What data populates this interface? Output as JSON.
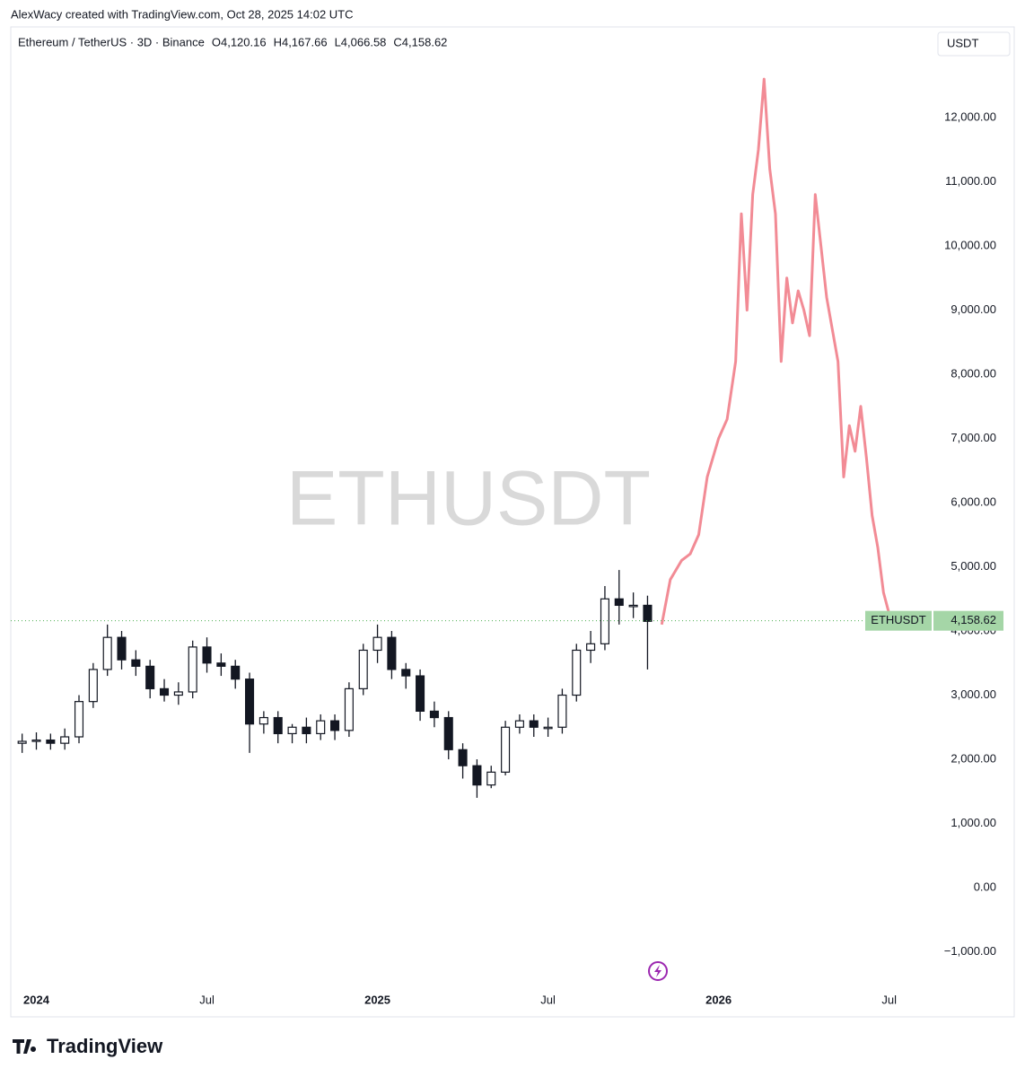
{
  "header": "AlexWacy created with TradingView.com, Oct 28, 2025 14:02 UTC",
  "brand": "TradingView",
  "chart_data": {
    "type": "candlestick",
    "title": "Ethereum / TetherUS · 3D · Binance",
    "ohlc_labels": [
      "O4,120.16",
      "H4,167.66",
      "L4,066.58",
      "C4,158.62"
    ],
    "watermark": "ETHUSDT",
    "currency": "USDT",
    "color": "#131722",
    "x": [
      -0.5,
      0,
      0.5,
      1,
      1.5,
      2,
      2.5,
      3,
      3.5,
      4,
      4.5,
      5,
      5.5,
      6,
      6.5,
      7,
      7.5,
      8,
      8.5,
      9,
      9.5,
      10,
      10.5,
      11,
      11.5,
      12,
      12.5,
      13,
      13.5,
      14,
      14.5,
      15,
      15.5,
      16,
      16.5,
      17,
      17.5,
      18,
      18.5,
      19,
      19.5,
      20,
      20.5,
      21,
      21.5
    ],
    "open": [
      2250,
      2280,
      2300,
      2250,
      2350,
      2900,
      3400,
      3900,
      3550,
      3450,
      3100,
      3000,
      3050,
      3750,
      3500,
      3450,
      3250,
      2550,
      2650,
      2400,
      2500,
      2400,
      2600,
      2450,
      3100,
      3700,
      3900,
      3400,
      3300,
      2750,
      2650,
      2150,
      1900,
      1600,
      1800,
      2500,
      2600,
      2500,
      2500,
      3000,
      3700,
      3800,
      4500,
      4400,
      4400
    ],
    "high": [
      2400,
      2420,
      2400,
      2480,
      3000,
      3500,
      4100,
      4000,
      3700,
      3550,
      3250,
      3200,
      3850,
      3900,
      3650,
      3550,
      3350,
      2750,
      2750,
      2550,
      2650,
      2700,
      2700,
      3200,
      3800,
      4100,
      4000,
      3500,
      3400,
      2900,
      2750,
      2250,
      2000,
      1900,
      2600,
      2700,
      2700,
      2650,
      3100,
      3800,
      4000,
      4700,
      4950,
      4600,
      4550
    ],
    "low": [
      2100,
      2150,
      2150,
      2150,
      2250,
      2800,
      3300,
      3400,
      3300,
      2950,
      2900,
      2850,
      2950,
      3350,
      3300,
      3100,
      2100,
      2400,
      2250,
      2250,
      2250,
      2300,
      2300,
      2350,
      3000,
      3500,
      3250,
      3100,
      2600,
      2500,
      2000,
      1700,
      1400,
      1550,
      1750,
      2400,
      2350,
      2350,
      2400,
      2900,
      3500,
      3700,
      4100,
      4200,
      3400
    ],
    "close": [
      2280,
      2300,
      2250,
      2350,
      2900,
      3400,
      3900,
      3550,
      3450,
      3100,
      3000,
      3050,
      3750,
      3500,
      3450,
      3250,
      2550,
      2650,
      2400,
      2500,
      2400,
      2600,
      2450,
      3100,
      3700,
      3900,
      3400,
      3300,
      2750,
      2650,
      2150,
      1900,
      1600,
      1800,
      2500,
      2600,
      2500,
      2500,
      3000,
      3700,
      3800,
      4500,
      4400,
      4400,
      4150
    ],
    "projection": {
      "color": "#f28b95",
      "x": [
        22,
        22.3,
        22.7,
        23,
        23.3,
        23.6,
        24,
        24.3,
        24.6,
        24.8,
        25,
        25.2,
        25.4,
        25.6,
        25.8,
        26,
        26.2,
        26.4,
        26.6,
        26.8,
        27,
        27.2,
        27.4,
        27.6,
        27.8,
        28,
        28.2,
        28.4,
        28.6,
        28.8,
        29,
        29.2,
        29.4,
        29.6,
        29.8,
        30.1
      ],
      "values": [
        4100,
        4800,
        5100,
        5200,
        5500,
        6400,
        7000,
        7300,
        8200,
        10500,
        9000,
        10800,
        11500,
        12600,
        11200,
        10500,
        8200,
        9500,
        8800,
        9300,
        9000,
        8600,
        10800,
        10000,
        9200,
        8700,
        8200,
        6400,
        7200,
        6800,
        7500,
        6700,
        5800,
        5300,
        4600,
        4100
      ]
    },
    "last_price": {
      "value": 4158.62,
      "label": "4,158.62"
    },
    "last_price_name": "ETHUSDT",
    "xlim": [
      -0.9,
      31.4
    ],
    "xticks": [
      {
        "value": 0,
        "label": "2024"
      },
      {
        "value": 6,
        "label": "Jul"
      },
      {
        "value": 12,
        "label": "2025"
      },
      {
        "value": 18,
        "label": "Jul"
      },
      {
        "value": 24,
        "label": "2026"
      },
      {
        "value": 30,
        "label": "Jul"
      }
    ],
    "ylim": [
      -1524,
      12965
    ],
    "yticks": [
      {
        "value": -1000,
        "label": "−1,000.00"
      },
      {
        "value": 0,
        "label": "0.00"
      },
      {
        "value": 1000,
        "label": "1,000.00"
      },
      {
        "value": 2000,
        "label": "2,000.00"
      },
      {
        "value": 3000,
        "label": "3,000.00"
      },
      {
        "value": 4000,
        "label": "4,000.00"
      },
      {
        "value": 5000,
        "label": "5,000.00"
      },
      {
        "value": 6000,
        "label": "6,000.00"
      },
      {
        "value": 7000,
        "label": "7,000.00"
      },
      {
        "value": 8000,
        "label": "8,000.00"
      },
      {
        "value": 9000,
        "label": "9,000.00"
      },
      {
        "value": 10000,
        "label": "10,000.00"
      },
      {
        "value": 11000,
        "label": "11,000.00"
      },
      {
        "value": 12000,
        "label": "12,000.00"
      }
    ]
  }
}
